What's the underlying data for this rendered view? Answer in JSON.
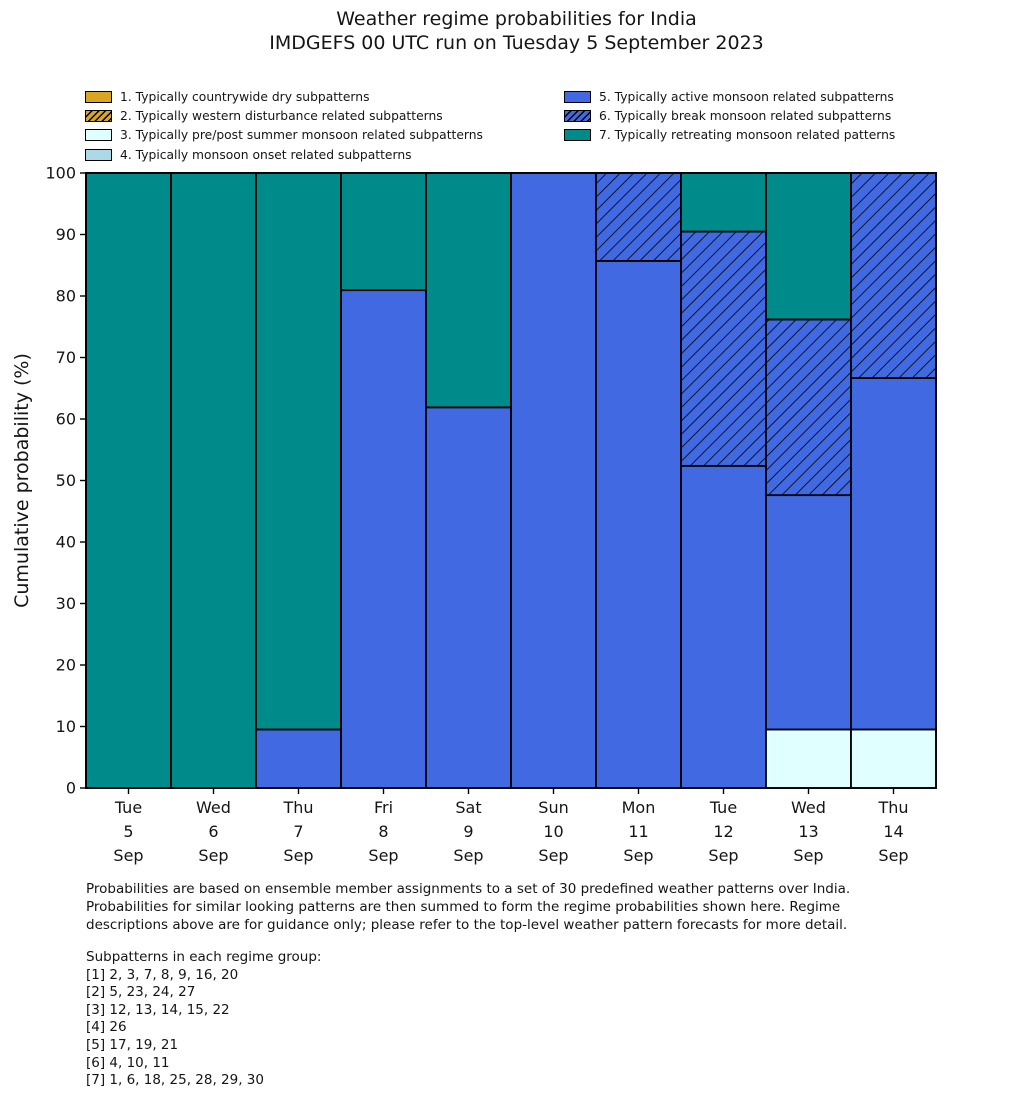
{
  "title": {
    "line1": "Weather regime probabilities for India",
    "line2": "IMDGEFS 00 UTC run on Tuesday 5 September 2023"
  },
  "chart_data": {
    "type": "bar",
    "stacked": true,
    "title": "Weather regime probabilities for India",
    "subtitle": "IMDGEFS 00 UTC run on Tuesday 5 September 2023",
    "ylabel": "Cumulative probability (%)",
    "ylim": [
      0,
      100
    ],
    "yticks": [
      0,
      10,
      20,
      30,
      40,
      50,
      60,
      70,
      80,
      90,
      100
    ],
    "grid": false,
    "legend_position": "top",
    "categories": [
      {
        "dow": "Tue",
        "day": "5",
        "mon": "Sep"
      },
      {
        "dow": "Wed",
        "day": "6",
        "mon": "Sep"
      },
      {
        "dow": "Thu",
        "day": "7",
        "mon": "Sep"
      },
      {
        "dow": "Fri",
        "day": "8",
        "mon": "Sep"
      },
      {
        "dow": "Sat",
        "day": "9",
        "mon": "Sep"
      },
      {
        "dow": "Sun",
        "day": "10",
        "mon": "Sep"
      },
      {
        "dow": "Mon",
        "day": "11",
        "mon": "Sep"
      },
      {
        "dow": "Tue",
        "day": "12",
        "mon": "Sep"
      },
      {
        "dow": "Wed",
        "day": "13",
        "mon": "Sep"
      },
      {
        "dow": "Thu",
        "day": "14",
        "mon": "Sep"
      }
    ],
    "series": [
      {
        "regime": 1,
        "label": "1. Typically countrywide dry subpatterns",
        "color": "#DAA520",
        "hatch": false,
        "values": [
          0,
          0,
          0,
          0,
          0,
          0,
          0,
          0,
          0,
          0
        ]
      },
      {
        "regime": 2,
        "label": "2. Typically western disturbance related subpatterns",
        "color": "#DAA520",
        "hatch": true,
        "values": [
          0,
          0,
          0,
          0,
          0,
          0,
          0,
          0,
          0,
          0
        ]
      },
      {
        "regime": 3,
        "label": "3. Typically pre/post summer monsoon related subpatterns",
        "color": "#E0FFFF",
        "hatch": false,
        "values": [
          0,
          0,
          0,
          0,
          0,
          0,
          0,
          0,
          9.52,
          9.52
        ]
      },
      {
        "regime": 4,
        "label": "4. Typically monsoon onset related subpatterns",
        "color": "#ADD8E6",
        "hatch": false,
        "values": [
          0,
          0,
          0,
          0,
          0,
          0,
          0,
          0,
          0,
          0
        ]
      },
      {
        "regime": 5,
        "label": "5. Typically active monsoon related subpatterns",
        "color": "#4169E1",
        "hatch": false,
        "values": [
          0,
          0,
          9.52,
          80.95,
          61.9,
          100,
          85.71,
          52.38,
          38.1,
          57.14
        ]
      },
      {
        "regime": 6,
        "label": "6. Typically break monsoon related subpatterns",
        "color": "#4169E1",
        "hatch": true,
        "values": [
          0,
          0,
          0,
          0,
          0,
          0,
          14.29,
          38.1,
          28.57,
          33.33
        ]
      },
      {
        "regime": 7,
        "label": "7. Typically retreating monsoon related patterns",
        "color": "#008B8B",
        "hatch": false,
        "values": [
          100,
          100,
          90.48,
          19.05,
          38.1,
          0,
          0,
          9.52,
          23.81,
          0
        ]
      }
    ]
  },
  "colors": {
    "bar_edge": "#000000",
    "axis": "#000000",
    "text": "#151515"
  },
  "footer": {
    "para_lines": [
      "Probabilities are based on ensemble member assignments to a set of 30 predefined weather patterns over India.",
      "Probabilities for similar looking patterns are then summed to form the regime probabilities shown here. Regime",
      "descriptions above are for guidance only; please refer to the top-level weather pattern forecasts for more detail."
    ],
    "subpatterns_title": "Subpatterns in each regime group:",
    "subpattern_lines": [
      "[1] 2, 3, 7, 8, 9, 16, 20",
      "[2] 5, 23, 24, 27",
      "[3] 12, 13, 14, 15, 22",
      "[4] 26",
      "[5] 17, 19, 21",
      "[6] 4, 10, 11",
      "[7] 1, 6, 18, 25, 28, 29, 30"
    ]
  }
}
